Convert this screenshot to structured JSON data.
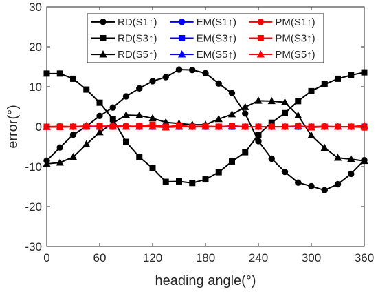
{
  "chart_data": {
    "type": "line",
    "title": "",
    "xlabel": "heading angle(°)",
    "ylabel": "error(°)",
    "xlim": [
      0,
      360
    ],
    "ylim": [
      -30,
      30
    ],
    "xticks": [
      0,
      60,
      120,
      180,
      240,
      300,
      360
    ],
    "yticks": [
      -30,
      -20,
      -10,
      0,
      10,
      20,
      30
    ],
    "grid": false,
    "legend_position": "top",
    "legend_columns": 3,
    "x": [
      0,
      15,
      30,
      45,
      60,
      75,
      90,
      105,
      120,
      135,
      150,
      165,
      180,
      195,
      210,
      225,
      240,
      255,
      270,
      285,
      300,
      315,
      330,
      345,
      360
    ],
    "series": [
      {
        "name": "RD(S1↑)",
        "color": "#000000",
        "marker": "circle",
        "values": [
          -8.5,
          -5.2,
          -2.0,
          0.1,
          2.7,
          4.8,
          7.6,
          9.6,
          11.4,
          12.4,
          14.3,
          14.2,
          13.4,
          10.8,
          8.4,
          3.3,
          -3.6,
          -8.0,
          -11.3,
          -14.0,
          -14.9,
          -15.9,
          -14.4,
          -11.8,
          -8.4
        ]
      },
      {
        "name": "RD(S3↑)",
        "color": "#000000",
        "marker": "square",
        "values": [
          13.3,
          13.3,
          12.0,
          9.3,
          6.0,
          1.9,
          -3.8,
          -7.6,
          -10.4,
          -13.8,
          -13.7,
          -14.1,
          -13.2,
          -11.4,
          -8.7,
          -6.4,
          -2.0,
          1.0,
          3.4,
          6.4,
          8.9,
          10.6,
          12.0,
          12.9,
          13.6
        ]
      },
      {
        "name": "RD(S5↑)",
        "color": "#000000",
        "marker": "triangle",
        "values": [
          -9.3,
          -9.0,
          -7.6,
          -4.4,
          -1.4,
          0.9,
          2.9,
          2.8,
          2.1,
          1.1,
          0.8,
          0.5,
          0.5,
          1.9,
          3.1,
          4.9,
          6.5,
          6.4,
          6.1,
          2.8,
          -2.2,
          -5.3,
          -7.8,
          -8.1,
          -8.6
        ]
      },
      {
        "name": "EM(S1↑)",
        "color": "#0000ff",
        "marker": "circle",
        "values": [
          0.0,
          0.0,
          0.0,
          0.0,
          0.0,
          0.0,
          0.0,
          0.0,
          0.0,
          0.0,
          0.0,
          0.0,
          0.0,
          0.0,
          0.0,
          0.0,
          0.0,
          0.0,
          0.0,
          0.0,
          0.0,
          0.0,
          0.0,
          0.0,
          0.0
        ]
      },
      {
        "name": "EM(S3↑)",
        "color": "#0000ff",
        "marker": "square",
        "values": [
          0.0,
          0.0,
          0.0,
          0.0,
          0.0,
          0.0,
          0.0,
          0.0,
          0.0,
          0.0,
          0.0,
          0.0,
          0.0,
          0.0,
          0.0,
          0.0,
          0.0,
          0.0,
          0.0,
          0.0,
          0.0,
          0.0,
          0.0,
          0.0,
          0.0
        ]
      },
      {
        "name": "EM(S5↑)",
        "color": "#0000ff",
        "marker": "triangle",
        "values": [
          0.0,
          0.0,
          0.0,
          0.0,
          0.0,
          0.0,
          0.0,
          0.0,
          0.0,
          0.0,
          0.0,
          0.0,
          0.0,
          0.0,
          0.0,
          0.0,
          0.0,
          0.0,
          0.0,
          0.0,
          0.0,
          0.0,
          0.0,
          0.0,
          0.0
        ]
      },
      {
        "name": "PM(S1↑)",
        "color": "#ff0000",
        "marker": "circle",
        "values": [
          0.0,
          0.1,
          0.0,
          0.1,
          0.0,
          0.1,
          0.2,
          0.0,
          0.3,
          0.0,
          0.2,
          0.0,
          0.1,
          0.0,
          0.1,
          0.0,
          0.0,
          0.0,
          0.0,
          0.1,
          0.0,
          0.1,
          0.0,
          0.0,
          0.0
        ]
      },
      {
        "name": "PM(S3↑)",
        "color": "#ff0000",
        "marker": "square",
        "values": [
          0.0,
          -0.1,
          0.0,
          0.0,
          0.2,
          0.0,
          0.0,
          0.2,
          0.5,
          0.0,
          0.3,
          0.0,
          0.1,
          0.0,
          0.2,
          0.0,
          0.0,
          0.0,
          0.0,
          0.1,
          0.0,
          0.0,
          0.0,
          0.0,
          -0.2
        ]
      },
      {
        "name": "PM(S5↑)",
        "color": "#ff0000",
        "marker": "triangle",
        "values": [
          -0.1,
          0.0,
          0.0,
          0.2,
          0.0,
          0.3,
          0.0,
          0.0,
          0.0,
          -0.2,
          0.0,
          0.0,
          0.0,
          0.0,
          0.2,
          0.0,
          0.0,
          0.0,
          0.0,
          0.2,
          -0.2,
          0.0,
          0.0,
          0.0,
          0.3
        ]
      }
    ]
  }
}
